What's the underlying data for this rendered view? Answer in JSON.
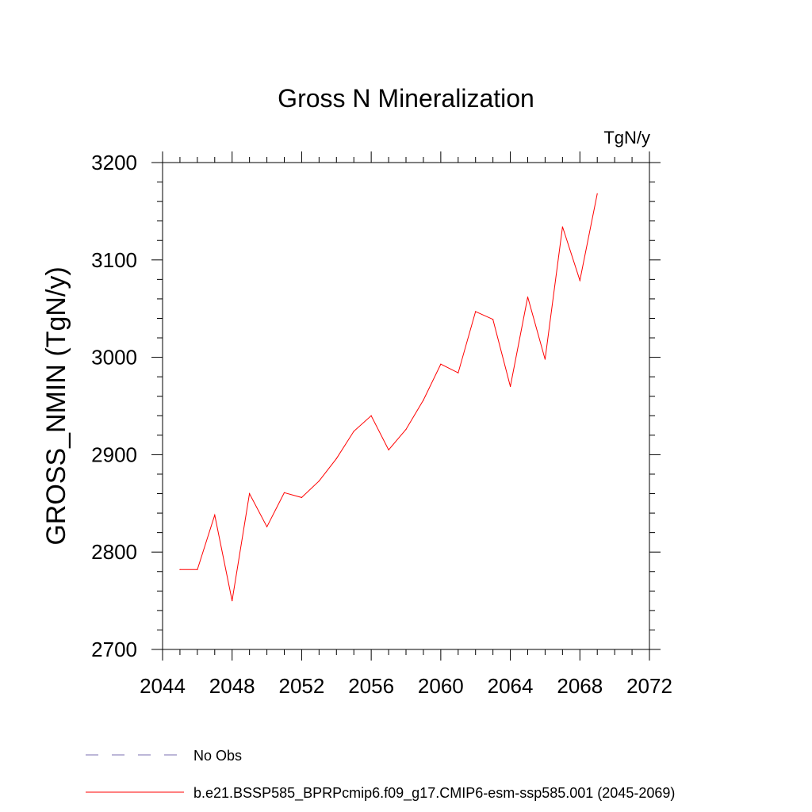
{
  "chart_data": {
    "type": "line",
    "title": "Gross N Mineralization",
    "units_label": "TgN/y",
    "xlabel": "",
    "ylabel": "GROSS_NMIN  (TgN/y)",
    "xlim": [
      2044,
      2072
    ],
    "ylim": [
      2700,
      3200
    ],
    "x_ticks": [
      2044,
      2048,
      2052,
      2056,
      2060,
      2064,
      2068,
      2072
    ],
    "y_ticks": [
      2700,
      2800,
      2900,
      3000,
      3100,
      3200
    ],
    "grid": false,
    "legend_placement": "bottom",
    "series": [
      {
        "name": "b.e21.BSSP585_BPRPcmip6.f09_g17.CMIP6-esm-ssp585.001 (2045-2069)",
        "color": "#ff0000",
        "style": "solid",
        "x": [
          2045,
          2046,
          2047,
          2048,
          2049,
          2050,
          2051,
          2052,
          2053,
          2054,
          2055,
          2056,
          2057,
          2058,
          2059,
          2060,
          2061,
          2062,
          2063,
          2064,
          2065,
          2066,
          2067,
          2068,
          2069
        ],
        "y": [
          2782,
          2782,
          2838,
          2750,
          2860,
          2826,
          2861,
          2856,
          2873,
          2896,
          2924,
          2940,
          2905,
          2926,
          2956,
          2993,
          2984,
          3047,
          3039,
          2970,
          3062,
          2998,
          3134,
          3079,
          3168
        ]
      }
    ],
    "legend": [
      {
        "label": "No Obs",
        "color": "#7b6fb0",
        "style": "dashed"
      },
      {
        "label": "b.e21.BSSP585_BPRPcmip6.f09_g17.CMIP6-esm-ssp585.001 (2045-2069)",
        "color": "#ff0000",
        "style": "solid"
      }
    ]
  }
}
